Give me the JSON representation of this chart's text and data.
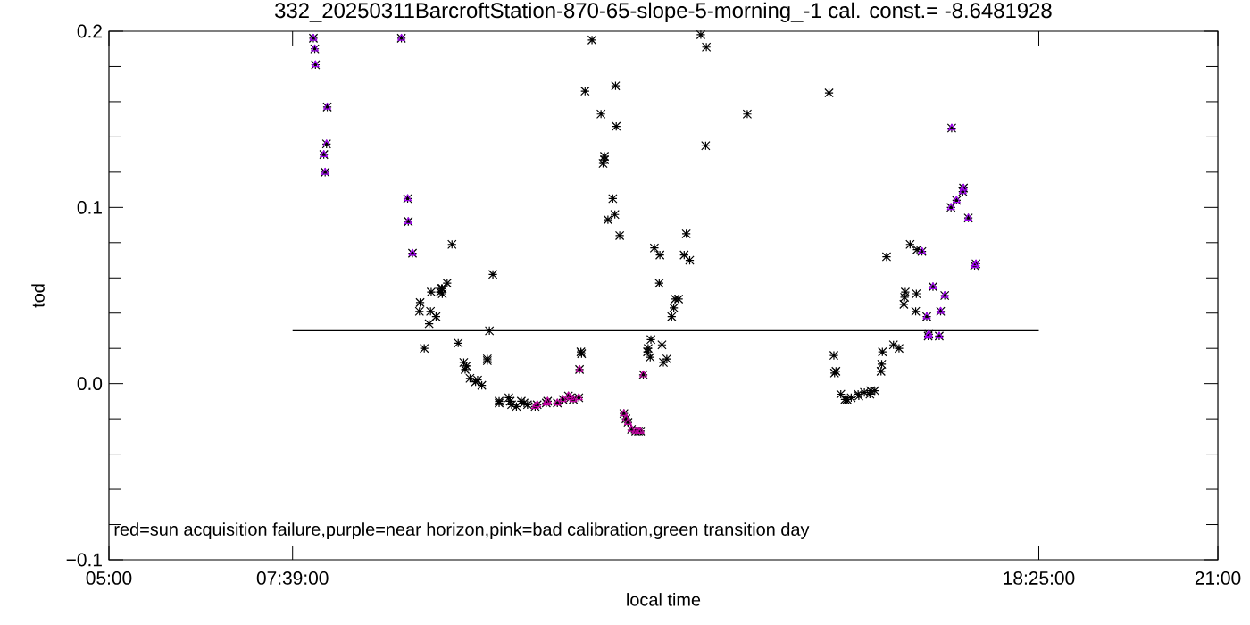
{
  "chart_data": {
    "type": "scatter",
    "title": "332_20250311BarcroftStation-870-65-slope-5-morning_-1 cal. const.= -8.6481928",
    "xlabel": "local time",
    "ylabel": "tod",
    "annotations": [
      "red=sun acquisition failure,purple=near horizon,pink=bad calibration,green transition day"
    ],
    "xlim": [
      5,
      21
    ],
    "ylim": [
      -0.1,
      0.2
    ],
    "xticks": [
      {
        "value": 5,
        "label": "05:00"
      },
      {
        "value": 7.65,
        "label": "07:39:00"
      },
      {
        "value": 18.4167,
        "label": "18:25:00"
      },
      {
        "value": 21,
        "label": "21:00"
      }
    ],
    "yticks": [
      {
        "value": -0.1,
        "label": "−0.1"
      },
      {
        "value": -0.08,
        "label": null
      },
      {
        "value": -0.06,
        "label": null
      },
      {
        "value": -0.04,
        "label": null
      },
      {
        "value": -0.02,
        "label": null
      },
      {
        "value": 0,
        "label": "0.0"
      },
      {
        "value": 0.02,
        "label": null
      },
      {
        "value": 0.04,
        "label": null
      },
      {
        "value": 0.06,
        "label": null
      },
      {
        "value": 0.08,
        "label": null
      },
      0.1,
      {
        "value": 0.12,
        "label": null
      },
      {
        "value": 0.14,
        "label": null
      },
      {
        "value": 0.16,
        "label": null
      },
      {
        "value": 0.18,
        "label": null
      },
      0.2
    ],
    "series": [
      {
        "color": "#000000",
        "marker": "cross",
        "x": [
          7.95,
          7.97,
          7.98,
          8.15,
          8.14,
          8.1,
          8.12,
          9.22,
          9.31,
          9.32,
          9.38,
          9.95,
          9.88,
          9.81,
          9.8,
          9.65,
          9.78,
          9.81,
          9.49,
          9.48,
          9.64,
          9.72,
          9.62,
          9.55,
          10.04,
          10.12,
          10.14,
          10.16,
          10.21,
          10.29,
          10.32,
          10.38,
          10.54,
          10.49,
          10.46,
          10.46,
          10.63,
          10.63,
          10.77,
          10.79,
          10.81,
          10.88,
          10.95,
          10.99,
          11.04,
          11.15,
          11.18,
          11.31,
          11.33,
          11.47,
          11.55,
          11.63,
          11.66,
          11.7,
          11.78,
          11.79,
          12.71,
          12.43,
          12.46,
          12.49,
          12.54,
          12.6,
          12.64,
          12.67,
          11.81,
          11.82,
          11.97,
          11.87,
          12.31,
          12.1,
          12.32,
          12.15,
          12.15,
          12.13,
          12.27,
          12.3,
          12.2,
          12.37,
          13.54,
          13.62,
          13.61,
          13.33,
          12.87,
          12.95,
          13.3,
          13.38,
          12.94,
          13.17,
          13.22,
          13.15,
          13.12,
          12.82,
          12.98,
          12.78,
          12.77,
          12.81,
          13.05,
          13.0,
          14.21,
          15.39,
          15.46,
          15.47,
          15.49,
          15.56,
          15.62,
          15.65,
          15.71,
          15.81,
          15.82,
          15.9,
          15.98,
          15.99,
          16.05,
          16.14,
          16.15,
          16.16,
          16.32,
          16.4,
          16.22,
          16.47,
          16.48,
          16.49,
          16.56,
          16.64,
          16.65,
          16.66,
          16.73,
          16.8,
          16.82,
          16.83,
          16.89,
          16.98,
          17.0,
          17.06,
          17.15,
          17.16,
          17.23,
          17.32,
          17.33,
          17.4,
          17.49,
          17.51
        ],
        "values": [
          0.196,
          0.19,
          0.181,
          0.157,
          0.136,
          0.13,
          0.12,
          0.196,
          0.105,
          0.092,
          0.074,
          0.079,
          0.057,
          0.054,
          0.054,
          0.052,
          0.052,
          0.051,
          0.046,
          0.041,
          0.041,
          0.038,
          0.034,
          0.02,
          0.023,
          0.012,
          0.008,
          0.01,
          0.003,
          0.001,
          0.002,
          -0.001,
          0.062,
          0.03,
          0.014,
          0.013,
          -0.011,
          -0.01,
          -0.008,
          -0.01,
          -0.012,
          -0.013,
          -0.01,
          -0.011,
          -0.012,
          -0.013,
          -0.012,
          -0.011,
          -0.01,
          -0.011,
          -0.009,
          -0.007,
          -0.008,
          -0.009,
          -0.008,
          0.008,
          0.005,
          -0.017,
          -0.02,
          -0.022,
          -0.026,
          -0.027,
          -0.027,
          -0.027,
          0.018,
          0.017,
          0.195,
          0.166,
          0.169,
          0.153,
          0.146,
          0.129,
          0.127,
          0.125,
          0.105,
          0.096,
          0.093,
          0.084,
          0.198,
          0.191,
          0.135,
          0.085,
          0.077,
          0.073,
          0.073,
          0.07,
          0.057,
          0.048,
          0.048,
          0.043,
          0.038,
          0.025,
          0.022,
          0.02,
          0.018,
          0.015,
          0.014,
          0.012,
          0.153,
          0.165,
          0.016,
          0.006,
          0.007,
          -0.006,
          -0.009,
          -0.009,
          -0.008,
          -0.006,
          -0.007,
          -0.005,
          -0.006,
          -0.004,
          -0.004,
          0.007,
          0.011,
          0.018,
          0.022,
          0.02,
          0.072,
          0.045,
          0.049,
          0.052,
          0.079,
          0.041,
          0.051,
          0.076,
          0.075,
          0.038,
          0.027,
          0.028,
          0.055,
          0.027,
          0.041,
          0.05,
          0.1,
          0.145,
          0.104,
          0.109,
          0.111,
          0.094,
          0.067,
          0.068
        ]
      },
      {
        "color": "#a000f0",
        "marker": "triangle",
        "x": [
          7.95,
          7.97,
          7.98,
          8.15,
          8.14,
          8.1,
          8.12,
          9.22,
          9.31,
          9.32,
          9.38,
          16.73,
          16.8,
          16.82,
          16.83,
          16.89,
          16.98,
          17.0,
          17.06,
          17.15,
          17.16,
          17.23,
          17.32,
          17.33,
          17.4,
          17.49,
          17.51
        ],
        "values": [
          0.196,
          0.19,
          0.181,
          0.157,
          0.136,
          0.13,
          0.12,
          0.196,
          0.105,
          0.092,
          0.074,
          0.075,
          0.038,
          0.027,
          0.028,
          0.055,
          0.027,
          0.041,
          0.05,
          0.1,
          0.145,
          0.104,
          0.109,
          0.111,
          0.094,
          0.067,
          0.068
        ]
      },
      {
        "color": "#c000a0",
        "marker": "triangle",
        "x": [
          11.15,
          11.18,
          11.31,
          11.33,
          11.47,
          11.55,
          11.63,
          11.66,
          11.7,
          11.78,
          11.79,
          12.71,
          12.43,
          12.46,
          12.49,
          12.54,
          12.6,
          12.64,
          12.67
        ],
        "values": [
          -0.013,
          -0.012,
          -0.011,
          -0.01,
          -0.011,
          -0.009,
          -0.007,
          -0.008,
          -0.009,
          -0.008,
          0.008,
          0.005,
          -0.017,
          -0.02,
          -0.022,
          -0.026,
          -0.027,
          -0.027,
          -0.027
        ]
      },
      {
        "type": "line",
        "color": "#000000",
        "marker": "none",
        "line_style": "solid",
        "x": [
          7.65,
          18.4167
        ],
        "values": [
          0.03,
          0.03
        ]
      }
    ]
  }
}
